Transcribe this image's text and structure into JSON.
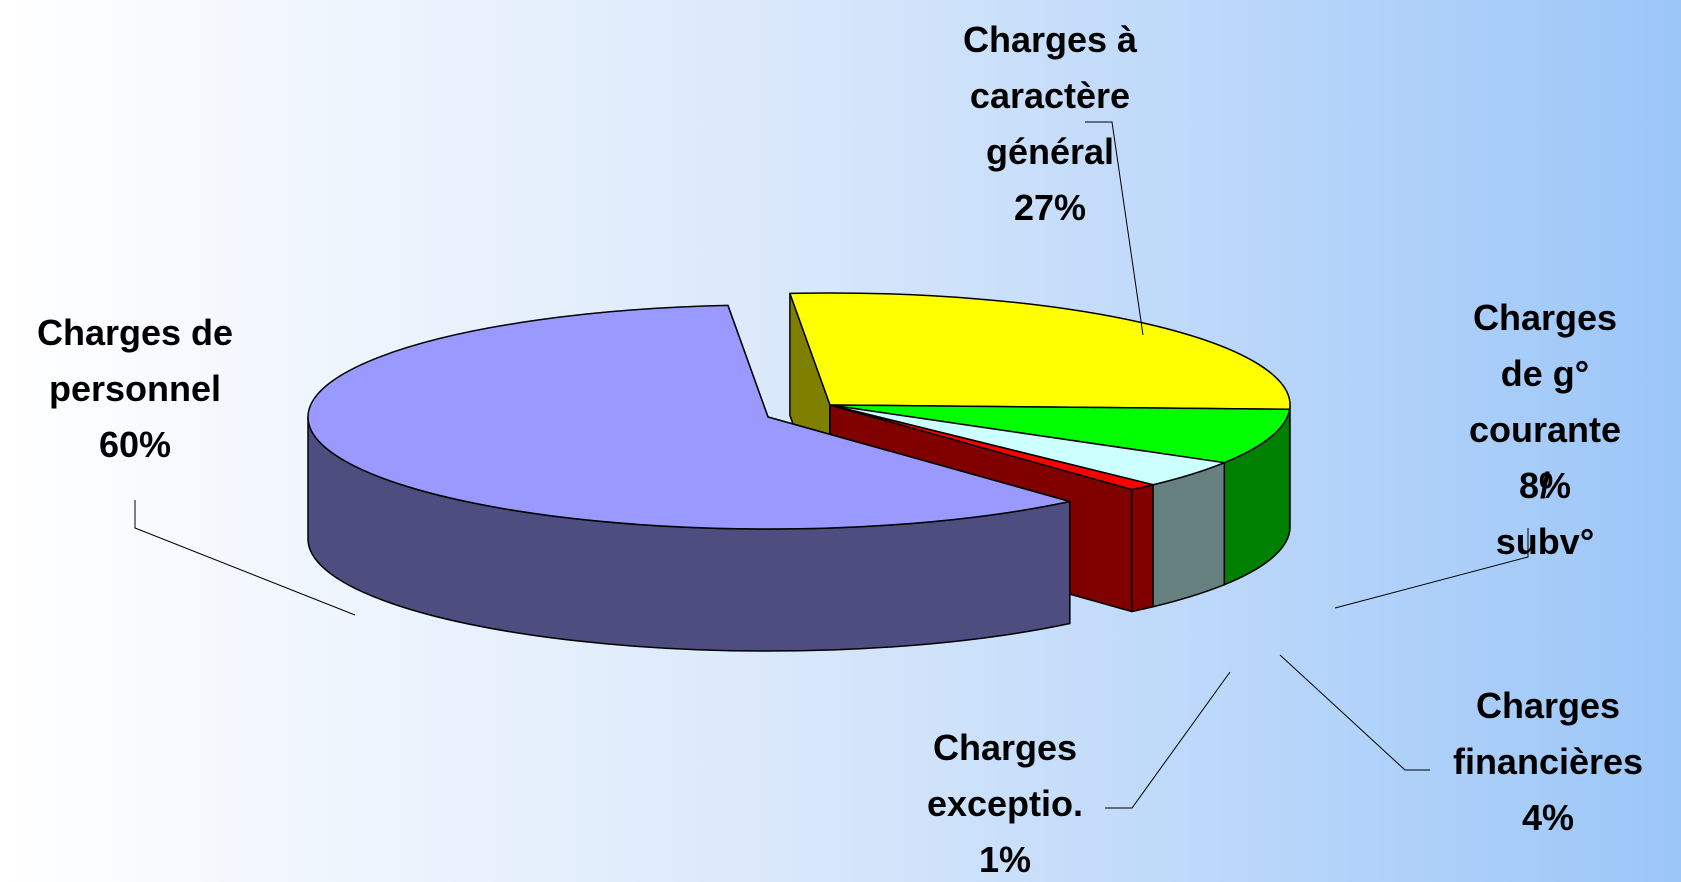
{
  "chart_data": {
    "type": "pie3d",
    "categories": [
      "Charges à\ncaractère\ngénéral",
      "Charges de g°\ncourante /\nsubv°",
      "Charges\nfinancières",
      "Charges\nexceptio.",
      "Charges de\npersonnel"
    ],
    "values": [
      27,
      8,
      4,
      1,
      60
    ],
    "value_labels": [
      "27%",
      "8%",
      "4%",
      "1%",
      "60%"
    ],
    "colors": [
      "#ffff00",
      "#00ff00",
      "#ccffff",
      "#ff0000",
      "#9999ff"
    ],
    "side_colors": [
      "#808000",
      "#008000",
      "#668080",
      "#800000",
      "#4d4d80"
    ]
  }
}
